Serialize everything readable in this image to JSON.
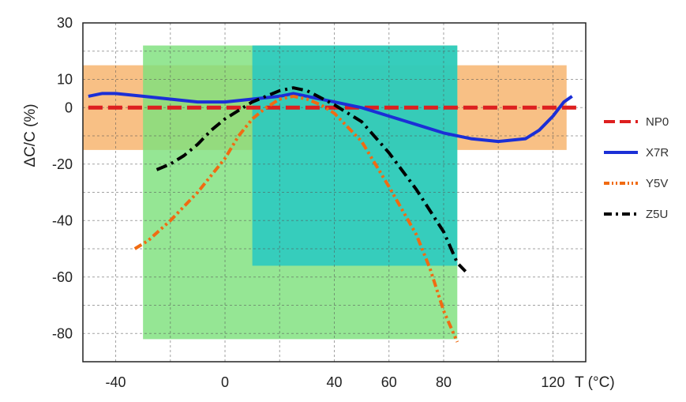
{
  "chart_data": {
    "type": "line",
    "title": "",
    "xlabel": "T (°C)",
    "ylabel": "ΔC/C (%)",
    "xlim": [
      -52,
      132
    ],
    "ylim": [
      -90,
      30
    ],
    "x_ticks": [
      {
        "value": -40,
        "label": "-40"
      },
      {
        "value": 0,
        "label": "0"
      },
      {
        "value": 40,
        "label": "40"
      },
      {
        "value": 60,
        "label": "60"
      },
      {
        "value": 80,
        "label": "80"
      },
      {
        "value": 120,
        "label": "120"
      }
    ],
    "y_ticks": [
      {
        "value": 30,
        "label": "30"
      },
      {
        "value": 10,
        "label": "10"
      },
      {
        "value": 0,
        "label": "0"
      },
      {
        "value": -20,
        "label": "-20"
      },
      {
        "value": -40,
        "label": "-40"
      },
      {
        "value": -60,
        "label": "-60"
      },
      {
        "value": -80,
        "label": "-80"
      }
    ],
    "grid": true,
    "legend_position": "right",
    "regions": [
      {
        "name": "X7R",
        "x": [
          -55,
          125
        ],
        "y": [
          -15,
          15
        ],
        "color": "#f7b26a"
      },
      {
        "name": "Y5V",
        "x": [
          -30,
          85
        ],
        "y": [
          -82,
          22
        ],
        "color": "#7ee07c"
      },
      {
        "name": "Z5U",
        "x": [
          10,
          85
        ],
        "y": [
          -56,
          22
        ],
        "color": "#21c7c4"
      }
    ],
    "series": [
      {
        "name": "NP0",
        "color": "#dd1f1f",
        "style": "dash",
        "points": [
          [
            -50,
            0
          ],
          [
            130,
            0
          ]
        ]
      },
      {
        "name": "X7R",
        "color": "#1b2fd6",
        "style": "solid",
        "points": [
          [
            -50,
            4
          ],
          [
            -45,
            5
          ],
          [
            -40,
            5
          ],
          [
            -30,
            4
          ],
          [
            -20,
            3
          ],
          [
            -10,
            2
          ],
          [
            0,
            2
          ],
          [
            10,
            3
          ],
          [
            20,
            4
          ],
          [
            25,
            5
          ],
          [
            30,
            4
          ],
          [
            40,
            2
          ],
          [
            50,
            0
          ],
          [
            60,
            -3
          ],
          [
            70,
            -6
          ],
          [
            80,
            -9
          ],
          [
            90,
            -11
          ],
          [
            100,
            -12
          ],
          [
            110,
            -11
          ],
          [
            115,
            -8
          ],
          [
            120,
            -3
          ],
          [
            124,
            2
          ],
          [
            127,
            4
          ]
        ]
      },
      {
        "name": "Y5V",
        "color": "#f06b12",
        "style": "dash-dot-dot",
        "points": [
          [
            -33,
            -50
          ],
          [
            -28,
            -47
          ],
          [
            -20,
            -40
          ],
          [
            -10,
            -30
          ],
          [
            0,
            -18
          ],
          [
            5,
            -10
          ],
          [
            10,
            -4
          ],
          [
            15,
            0
          ],
          [
            20,
            3
          ],
          [
            25,
            4
          ],
          [
            30,
            3
          ],
          [
            35,
            1
          ],
          [
            40,
            -2
          ],
          [
            50,
            -12
          ],
          [
            60,
            -28
          ],
          [
            70,
            -45
          ],
          [
            75,
            -57
          ],
          [
            80,
            -72
          ],
          [
            85,
            -83
          ]
        ]
      },
      {
        "name": "Z5U",
        "color": "#000000",
        "style": "dash-dot",
        "points": [
          [
            -25,
            -22
          ],
          [
            -20,
            -20
          ],
          [
            -15,
            -17
          ],
          [
            -10,
            -13
          ],
          [
            -5,
            -8
          ],
          [
            0,
            -4
          ],
          [
            5,
            -1
          ],
          [
            10,
            2
          ],
          [
            15,
            4
          ],
          [
            20,
            6
          ],
          [
            25,
            7
          ],
          [
            30,
            6
          ],
          [
            40,
            1
          ],
          [
            50,
            -5
          ],
          [
            60,
            -16
          ],
          [
            70,
            -29
          ],
          [
            80,
            -44
          ],
          [
            85,
            -55
          ],
          [
            88,
            -58
          ]
        ]
      }
    ]
  }
}
